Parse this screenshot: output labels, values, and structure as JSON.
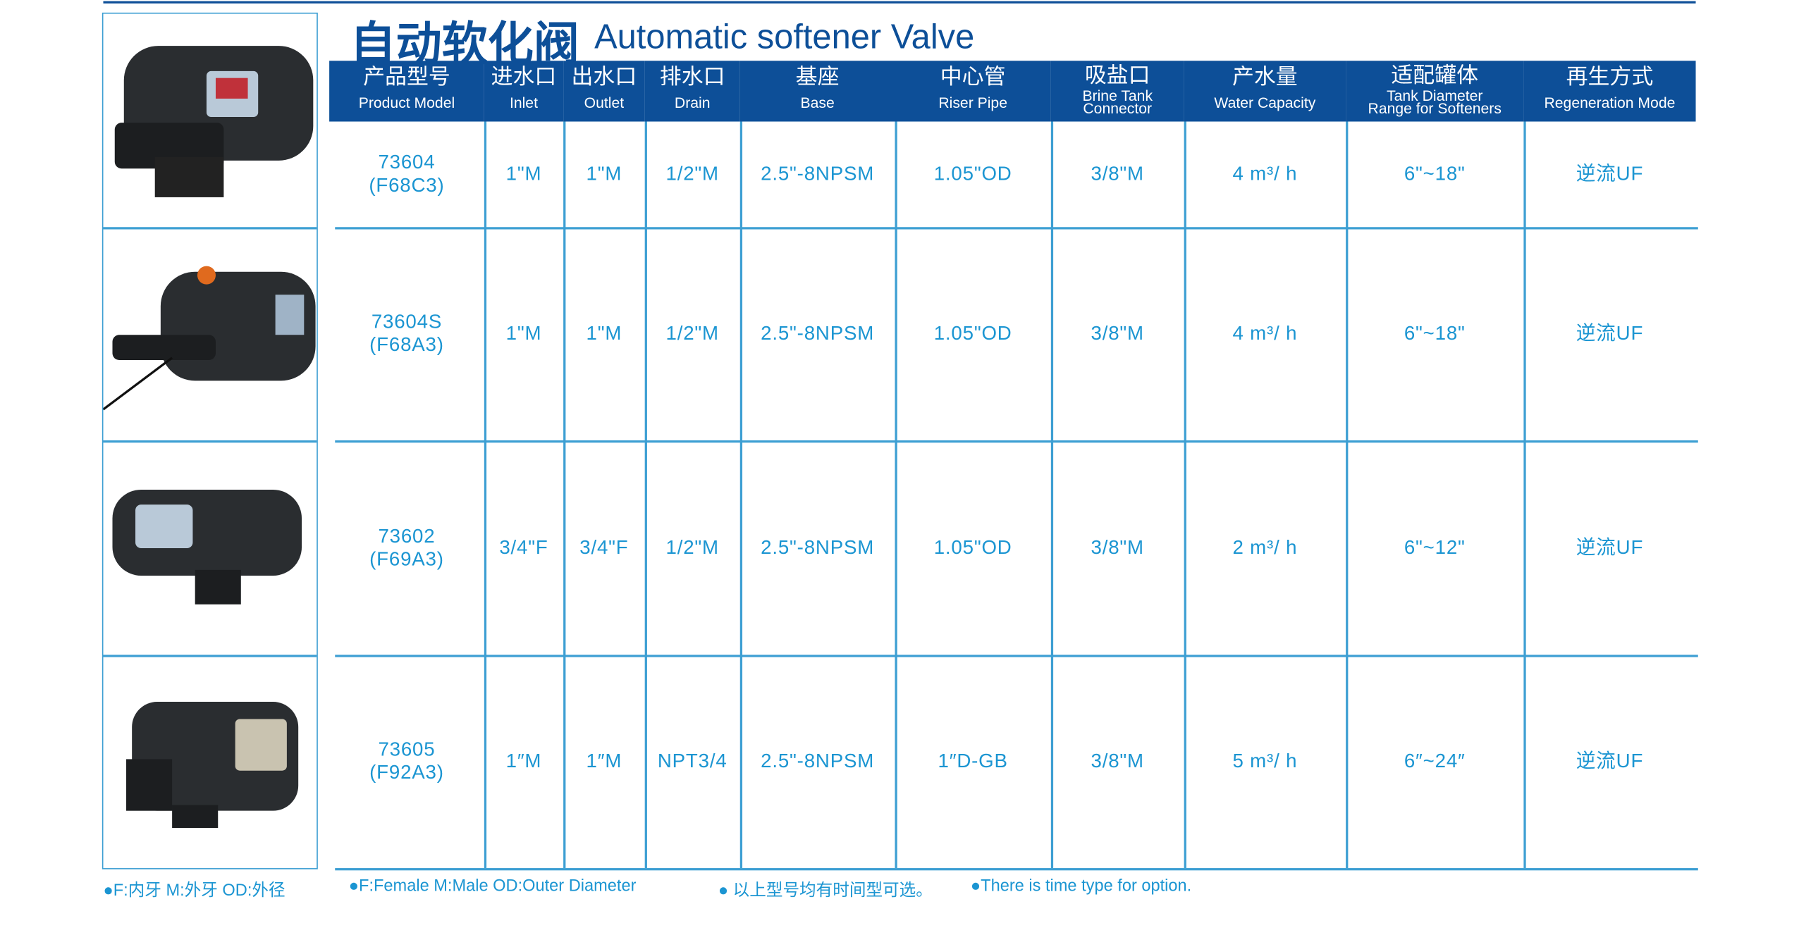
{
  "header": {
    "title_cn": "自动软化阀",
    "title_en": "Automatic softener Valve"
  },
  "table": {
    "columns": [
      {
        "cn": "产品型号",
        "en": [
          "Product Model"
        ]
      },
      {
        "cn": "进水口",
        "en": [
          "Inlet"
        ]
      },
      {
        "cn": "出水口",
        "en": [
          "Outlet"
        ]
      },
      {
        "cn": "排水口",
        "en": [
          "Drain"
        ]
      },
      {
        "cn": "基座",
        "en": [
          "Base"
        ]
      },
      {
        "cn": "中心管",
        "en": [
          "Riser Pipe"
        ]
      },
      {
        "cn": "吸盐口",
        "en": [
          "Brine Tank",
          "Connector"
        ]
      },
      {
        "cn": "产水量",
        "en": [
          "Water Capacity"
        ]
      },
      {
        "cn": "适配罐体",
        "en": [
          "Tank Diameter",
          "Range for Softeners"
        ]
      },
      {
        "cn": "再生方式",
        "en": [
          "Regeneration Mode"
        ]
      }
    ],
    "rows": [
      [
        [
          "73604",
          "(F68C3)"
        ],
        "1\"M",
        "1\"M",
        "1/2\"M",
        "2.5\"-8NPSM",
        "1.05\"OD",
        "3/8\"M",
        "4 m³/ h",
        "6\"~18\"",
        "逆流UF"
      ],
      [
        [
          "73604S",
          "(F68A3)"
        ],
        "1\"M",
        "1\"M",
        "1/2\"M",
        "2.5\"-8NPSM",
        "1.05\"OD",
        "3/8\"M",
        "4 m³/ h",
        "6\"~18\"",
        "逆流UF"
      ],
      [
        [
          "73602",
          "(F69A3)"
        ],
        "3/4\"F",
        "3/4\"F",
        "1/2\"M",
        "2.5\"-8NPSM",
        "1.05\"OD",
        "3/8\"M",
        "2 m³/ h",
        "6\"~12\"",
        "逆流UF"
      ],
      [
        [
          "73605",
          "(F92A3)"
        ],
        "1″M",
        "1″M",
        "NPT3/4",
        "2.5\"-8NPSM",
        "1″D-GB",
        "3/8\"M",
        "5 m³/ h",
        "6″~24″",
        "逆流UF"
      ]
    ]
  },
  "footer": [
    "●F:内牙   M:外牙   OD:外径",
    "●F:Female    M:Male    OD:Outer Diameter",
    "●  以上型号均有时间型可选。",
    "●There is time type for option."
  ]
}
